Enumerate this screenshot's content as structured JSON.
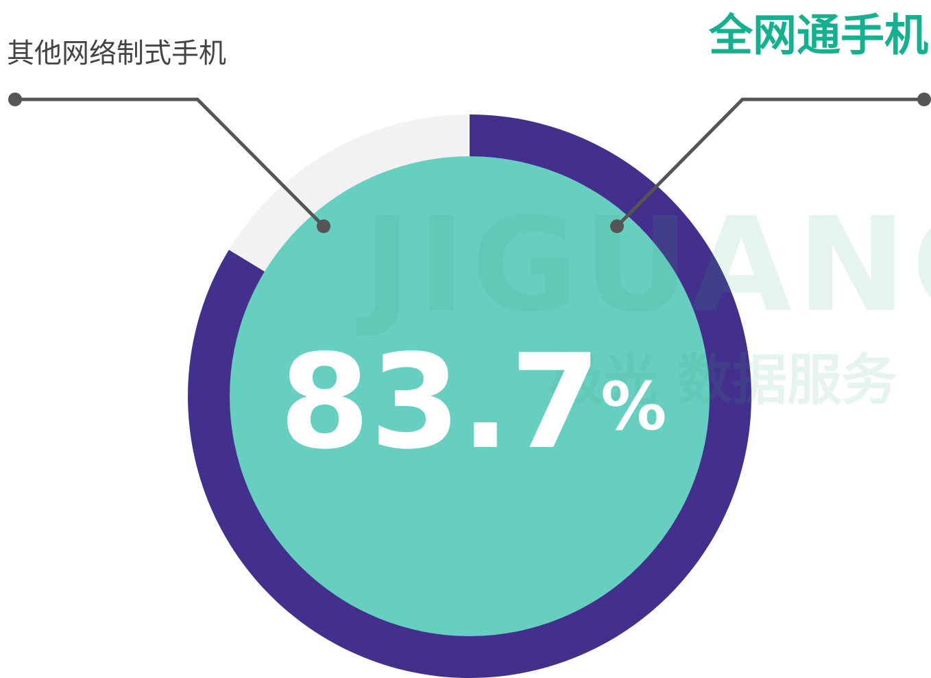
{
  "chart_data": {
    "type": "pie",
    "categories": [
      "全网通手机",
      "其他网络制式手机"
    ],
    "values": [
      83.7,
      16.3
    ],
    "value_labels": [
      "83.7%",
      null
    ],
    "colors": [
      "#43308c",
      "#f2f2f2"
    ],
    "center_color": "#66cfc0",
    "watermark": [
      "JIGUANG",
      "极光 数据服务"
    ]
  }
}
